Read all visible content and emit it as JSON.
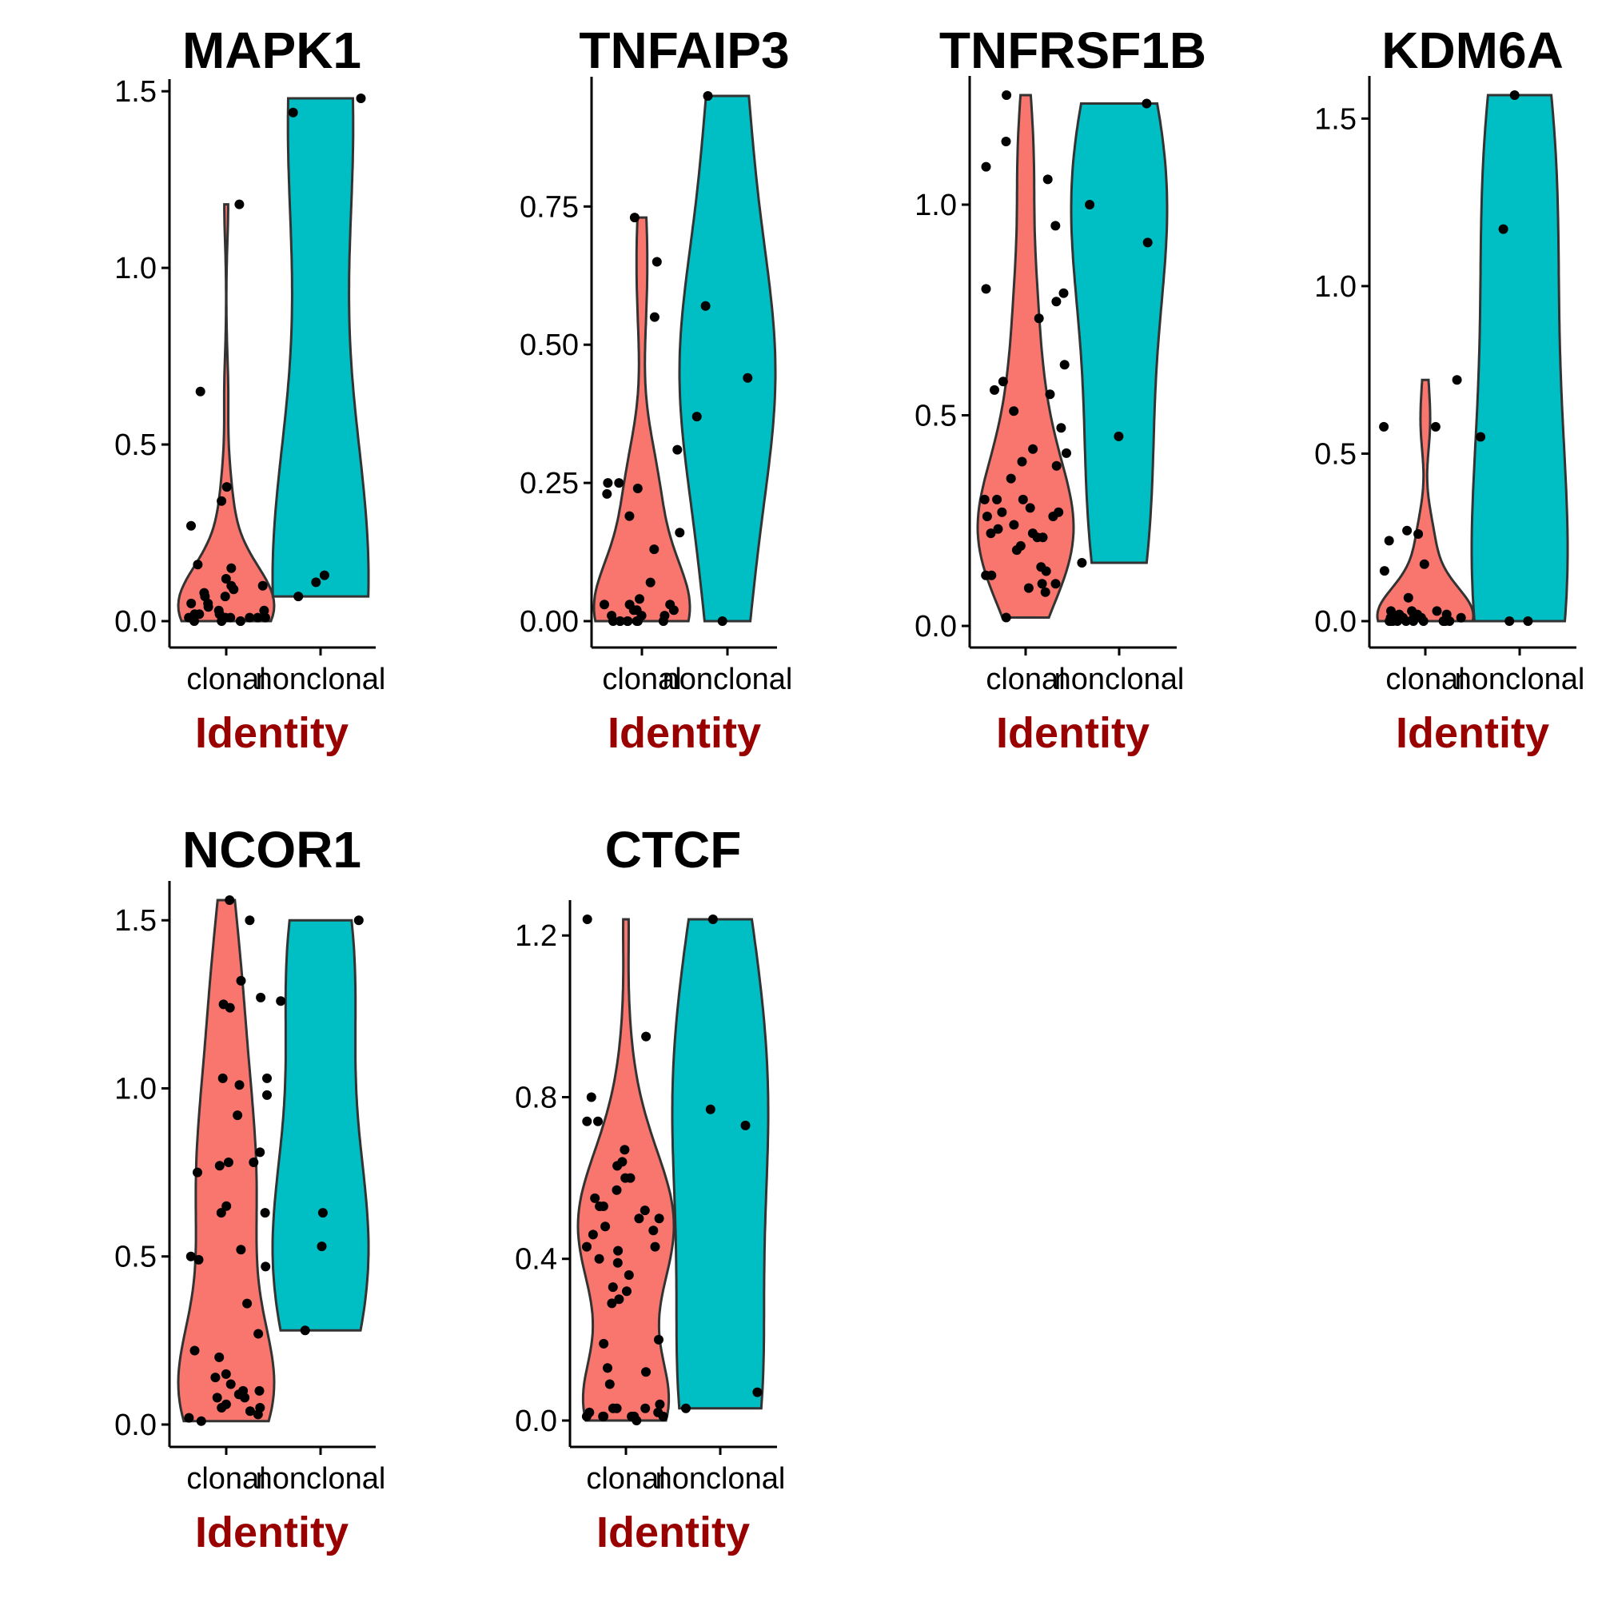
{
  "colors": {
    "clonal": "#F8766D",
    "nonclonal": "#00BFC4",
    "xlabel": "#990000"
  },
  "chart_data": [
    {
      "type": "violin",
      "title": "MAPK1",
      "xlabel": "Identity",
      "categories": [
        "clonal",
        "nonclonal"
      ],
      "ylim": [
        -0.07,
        1.56
      ],
      "yticks": [
        0,
        0.5,
        1,
        1.5
      ],
      "ytick_labels": [
        "0.0",
        "0.5",
        "1.0",
        "1.5"
      ],
      "series": [
        {
          "category": "clonal",
          "max": 1.18,
          "values": [
            0.01,
            0.1,
            0.0,
            0.07,
            0.34,
            0.38,
            0.05,
            0.01,
            0.09,
            0.03,
            0.04,
            0.01,
            1.18,
            0.27,
            0.12,
            0.08,
            0.0,
            0.16,
            0.15,
            0.07,
            0.02,
            0.01,
            0.1,
            0.01,
            0.02,
            0.0,
            0.03,
            0.65,
            0.02,
            0.01,
            0.0,
            0.05
          ]
        },
        {
          "category": "nonclonal",
          "max": 1.48,
          "values": [
            1.44,
            1.48,
            0.11,
            0.07,
            0.13
          ]
        }
      ]
    },
    {
      "type": "violin",
      "title": "TNFAIP3",
      "xlabel": "Identity",
      "categories": [
        "clonal",
        "nonclonal"
      ],
      "ylim": [
        -0.048,
        1.0
      ],
      "yticks": [
        0,
        0.25,
        0.5,
        0.75
      ],
      "ytick_labels": [
        "0.00",
        "0.25",
        "0.50",
        "0.75"
      ],
      "series": [
        {
          "category": "clonal",
          "max": 0.73,
          "values": [
            0.0,
            0.0,
            0.01,
            0.03,
            0.19,
            0.23,
            0.31,
            0.0,
            0.02,
            0.04,
            0.0,
            0.07,
            0.02,
            0.0,
            0.55,
            0.01,
            0.25,
            0.24,
            0.25,
            0.03,
            0.73,
            0.65,
            0.13,
            0.16,
            0.0,
            0.02,
            0.01,
            0.0,
            0.03,
            0.0
          ]
        },
        {
          "category": "nonclonal",
          "max": 0.95,
          "values": [
            0.0,
            0.95,
            0.57,
            0.44,
            0.37
          ]
        }
      ]
    },
    {
      "type": "violin",
      "title": "TNFRSF1B",
      "xlabel": "Identity",
      "categories": [
        "clonal",
        "nonclonal"
      ],
      "ylim": [
        -0.04,
        1.3
      ],
      "yticks": [
        0,
        0.5,
        1
      ],
      "ytick_labels": [
        "0.0",
        "0.5",
        "1.0"
      ],
      "series": [
        {
          "category": "clonal",
          "max": 1.26,
          "values": [
            1.26,
            1.06,
            0.95,
            0.62,
            0.47,
            0.1,
            0.13,
            0.21,
            0.28,
            0.8,
            0.35,
            0.51,
            0.27,
            0.18,
            0.14,
            0.08,
            0.02,
            0.79,
            0.3,
            0.24,
            0.22,
            0.19,
            0.12,
            0.41,
            0.39,
            0.38,
            0.42,
            0.3,
            0.56,
            0.55,
            0.27,
            1.15,
            1.09,
            0.3,
            0.21,
            0.1,
            0.73,
            0.77,
            0.58,
            0.26,
            0.23,
            0.26,
            0.22,
            0.12,
            0.09
          ]
        },
        {
          "category": "nonclonal",
          "max": 1.24,
          "values": [
            1.24,
            0.91,
            1.0,
            0.45,
            0.15
          ]
        }
      ]
    },
    {
      "type": "violin",
      "title": "KDM6A",
      "xlabel": "Identity",
      "categories": [
        "clonal",
        "nonclonal"
      ],
      "ylim": [
        -0.07,
        1.64
      ],
      "yticks": [
        0,
        0.5,
        1,
        1.5
      ],
      "ytick_labels": [
        "0.0",
        "0.5",
        "1.0",
        "1.5"
      ],
      "series": [
        {
          "category": "clonal",
          "max": 0.72,
          "values": [
            0.27,
            0.17,
            0.24,
            0.0,
            0.01,
            0.07,
            0.0,
            0.01,
            0.0,
            0.58,
            0.58,
            0.03,
            0.02,
            0.0,
            0.0,
            0.26,
            0.15,
            0.02,
            0.01,
            0.0,
            0.03,
            0.01,
            0.0,
            0.03,
            0.0,
            0.01,
            0.0,
            0.72,
            0.01,
            0.0,
            0.02
          ]
        },
        {
          "category": "nonclonal",
          "max": 1.57,
          "values": [
            1.17,
            0.55,
            0.0,
            1.57,
            0.0
          ]
        }
      ]
    },
    {
      "type": "violin",
      "title": "NCOR1",
      "xlabel": "Identity",
      "categories": [
        "clonal",
        "nonclonal"
      ],
      "ylim": [
        -0.07,
        1.64
      ],
      "yticks": [
        0,
        0.5,
        1,
        1.5
      ],
      "ytick_labels": [
        "0.0",
        "0.5",
        "1.0",
        "1.5"
      ],
      "series": [
        {
          "category": "clonal",
          "max": 1.56,
          "values": [
            1.56,
            0.81,
            0.78,
            0.77,
            0.22,
            0.1,
            0.09,
            0.06,
            0.05,
            1.32,
            1.03,
            0.63,
            0.27,
            0.2,
            0.15,
            0.1,
            0.04,
            1.27,
            1.24,
            0.98,
            0.92,
            0.78,
            0.63,
            0.5,
            0.47,
            0.12,
            0.09,
            0.08,
            0.36,
            1.5,
            0.65,
            0.05,
            0.03,
            0.08,
            0.02,
            0.14,
            1.25,
            1.03,
            1.01,
            0.75,
            0.52,
            0.49,
            0.01
          ]
        },
        {
          "category": "nonclonal",
          "max": 1.5,
          "values": [
            0.63,
            0.28,
            1.26,
            1.5,
            0.53
          ]
        }
      ]
    },
    {
      "type": "violin",
      "title": "CTCF",
      "xlabel": "Identity",
      "categories": [
        "clonal",
        "nonclonal"
      ],
      "ylim": [
        -0.05,
        1.3
      ],
      "yticks": [
        0,
        0.4,
        0.8,
        1.2
      ],
      "ytick_labels": [
        "0.0",
        "0.4",
        "0.8",
        "1.2"
      ],
      "series": [
        {
          "category": "clonal",
          "max": 1.24,
          "values": [
            1.24,
            0.57,
            0.53,
            0.5,
            0.19,
            0.12,
            0.09,
            0.04,
            0.01,
            0.63,
            0.47,
            0.4,
            0.33,
            0.3,
            0.2,
            0.01,
            0.8,
            0.74,
            0.67,
            0.48,
            0.39,
            0.32,
            0.29,
            0.01,
            0.02,
            0.95,
            0.64,
            0.6,
            0.5,
            0.46,
            0.42,
            0.01,
            0.03,
            0.74,
            0.55,
            0.52,
            0.43,
            0.43,
            0.36,
            0.13,
            0.03,
            0.01,
            0.03,
            0.6,
            0.53,
            0.0,
            0.02,
            0.01
          ]
        },
        {
          "category": "nonclonal",
          "max": 1.24,
          "values": [
            0.77,
            0.07,
            0.73,
            1.24,
            0.03
          ]
        }
      ]
    }
  ]
}
